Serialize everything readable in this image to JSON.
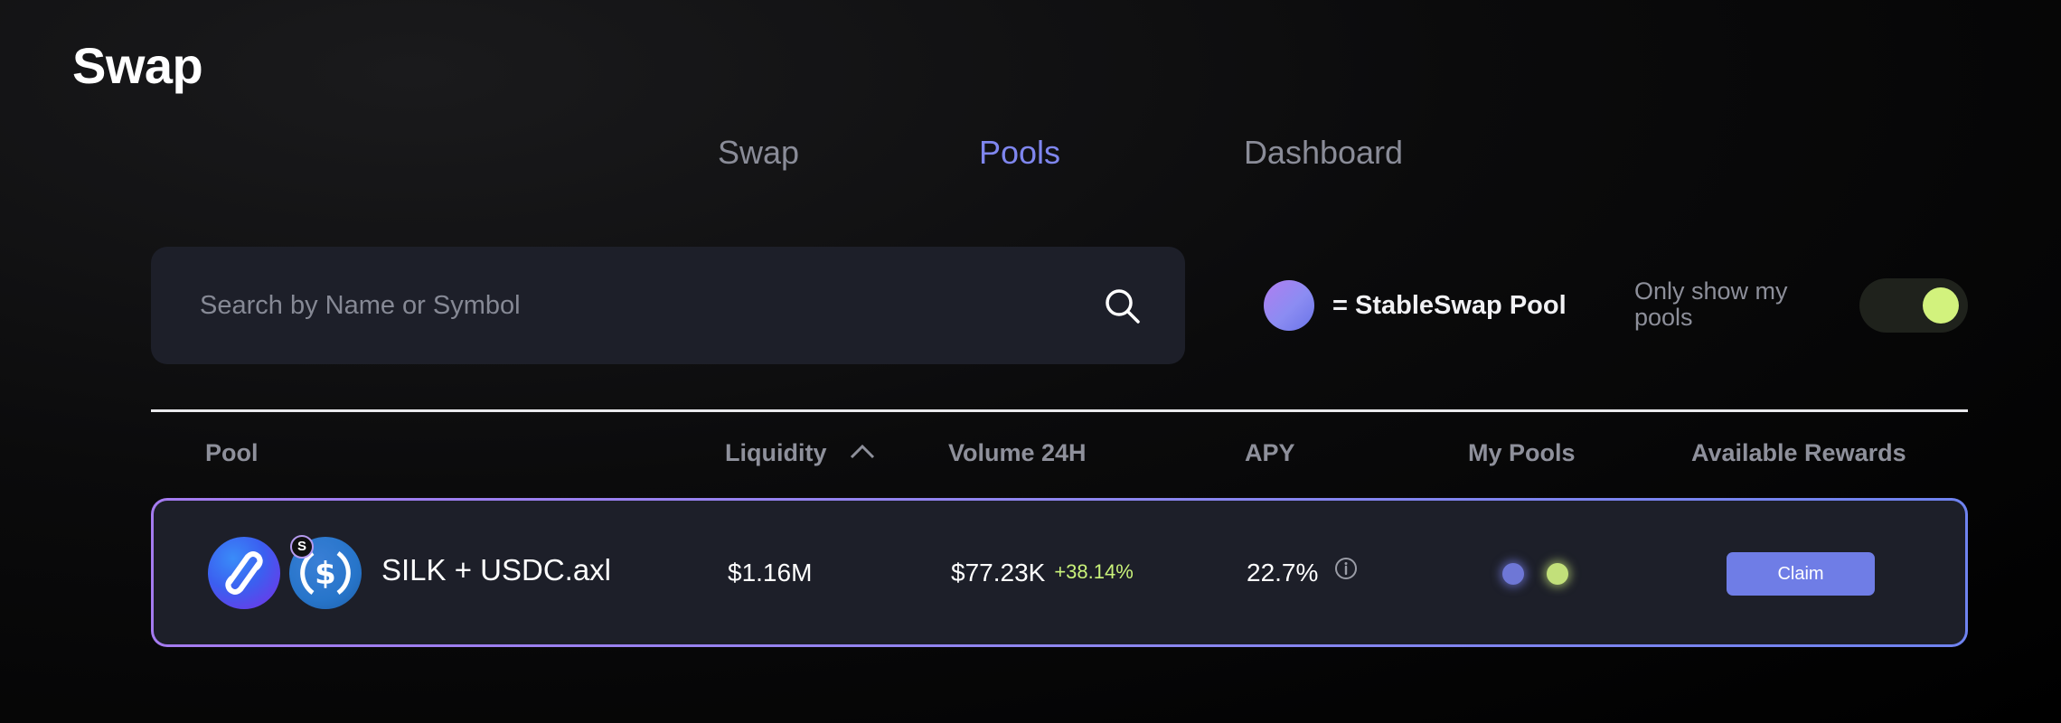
{
  "page": {
    "title": "Swap"
  },
  "tabs": [
    {
      "label": "Swap",
      "active": false
    },
    {
      "label": "Pools",
      "active": true
    },
    {
      "label": "Dashboard",
      "active": false
    }
  ],
  "search": {
    "placeholder": "Search by Name or Symbol",
    "value": "",
    "icon": "search-icon"
  },
  "legend": {
    "label": "= StableSwap Pool",
    "color": "#9a86f2"
  },
  "filter": {
    "label": "Only show my pools",
    "enabled": true,
    "knob_color": "#d2f27d"
  },
  "table": {
    "headers": {
      "pool": "Pool",
      "liquidity": "Liquidity",
      "volume": "Volume 24H",
      "apy": "APY",
      "my_pools": "My Pools",
      "rewards": "Available Rewards"
    },
    "sort": {
      "column": "Liquidity",
      "direction": "ascending",
      "icon": "chevron-up-icon"
    },
    "rows": [
      {
        "tokens": [
          "SILK",
          "USDC"
        ],
        "badge": "S",
        "name": "SILK + USDC.axl",
        "liquidity": "$1.16M",
        "volume": "$77.23K",
        "volume_change": "+38.14%",
        "apy": "22.7%",
        "stableswap": true,
        "my_pools_indicators": [
          "#6e77d6",
          "#c2e07a"
        ],
        "claim_label": "Claim"
      }
    ]
  },
  "colors": {
    "accent": "#7f86ee",
    "positive": "#c9f27a",
    "surface": "#1d1f29",
    "claim_button": "#6f7de6"
  }
}
